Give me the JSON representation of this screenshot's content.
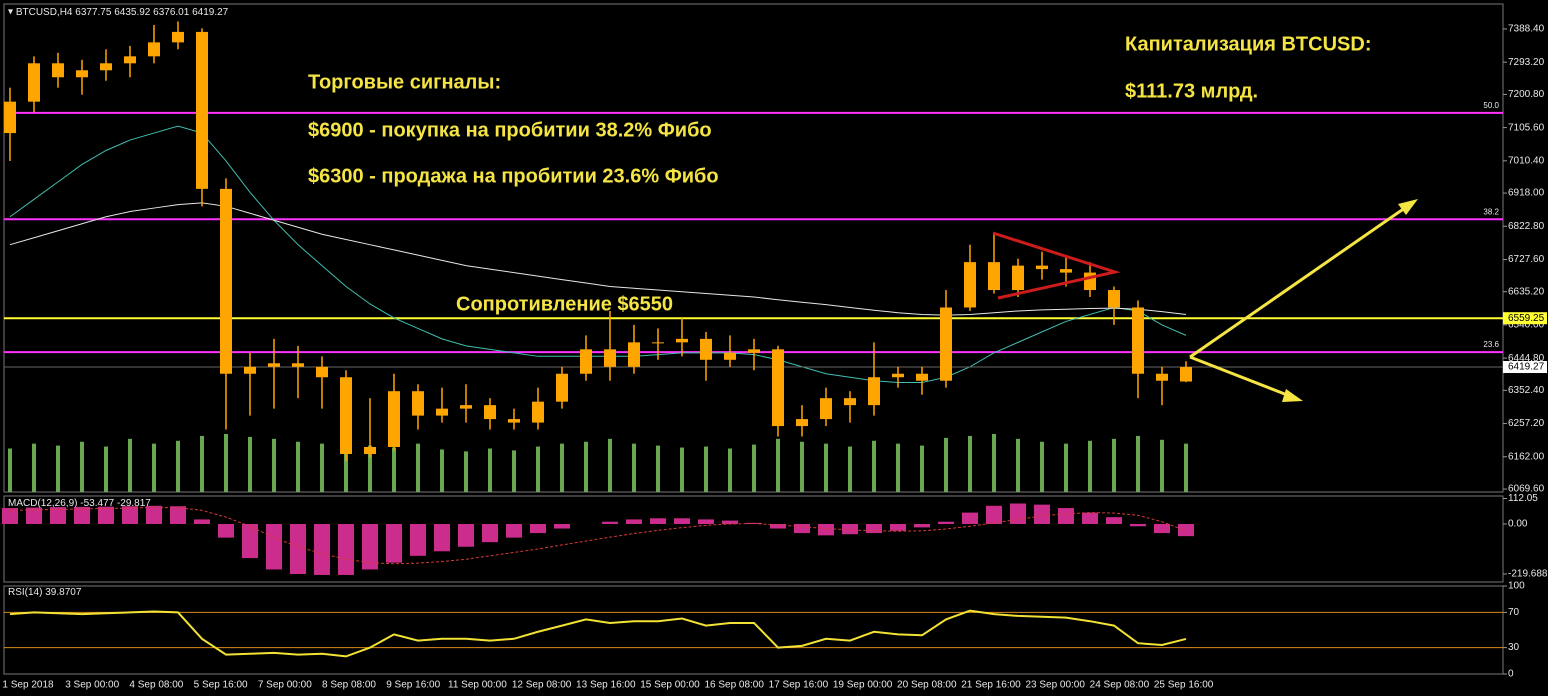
{
  "chart_data": [
    {
      "type": "candlestick",
      "title": "BTCUSD,H4",
      "color": "#ffa500",
      "volume_color": "#6aa84f",
      "ylim": [
        6061,
        7460
      ],
      "yticks": [
        {
          "value": 7388.4,
          "label": "7388.40"
        },
        {
          "value": 7293.2,
          "label": "7293.20"
        },
        {
          "value": 7200.8,
          "label": "7200.80"
        },
        {
          "value": 7105.6,
          "label": "7105.60"
        },
        {
          "value": 7010.4,
          "label": "7010.40"
        },
        {
          "value": 6918,
          "label": "6918.00"
        },
        {
          "value": 6822.8,
          "label": "6822.80"
        },
        {
          "value": 6727.6,
          "label": "6727.60"
        },
        {
          "value": 6635.2,
          "label": "6635.20"
        },
        {
          "value": 6540,
          "label": "6540.00"
        },
        {
          "value": 6444.8,
          "label": "6444.80"
        },
        {
          "value": 6352.4,
          "label": "6352.40"
        },
        {
          "value": 6257.2,
          "label": "6257.20"
        },
        {
          "value": 6162,
          "label": "6162.00"
        },
        {
          "value": 6069.6,
          "label": "6069.60"
        }
      ],
      "x_labels": [
        "1 Sep 2018",
        "3 Sep 00:00",
        "4 Sep 08:00",
        "5 Sep 16:00",
        "7 Sep 00:00",
        "8 Sep 08:00",
        "9 Sep 16:00",
        "11 Sep 00:00",
        "12 Sep 08:00",
        "13 Sep 16:00",
        "15 Sep 00:00",
        "16 Sep 08:00",
        "17 Sep 16:00",
        "19 Sep 00:00",
        "20 Sep 08:00",
        "21 Sep 16:00",
        "23 Sep 00:00",
        "24 Sep 08:00",
        "25 Sep 16:00"
      ],
      "open": [
        7090,
        7180,
        7290,
        7250,
        7270,
        7290,
        7310,
        7350,
        7380,
        6930,
        6400,
        6420,
        6430,
        6420,
        6390,
        6170,
        6190,
        6350,
        6280,
        6300,
        6310,
        6270,
        6260,
        6320,
        6400,
        6470,
        6420,
        6490,
        6490,
        6500,
        6440,
        6460,
        6470,
        6250,
        6270,
        6330,
        6310,
        6390,
        6400,
        6380,
        6590,
        6720,
        6640,
        6710,
        6700,
        6690,
        6640,
        6590,
        6400,
        6377.75
      ],
      "high": [
        7220,
        7310,
        7320,
        7300,
        7330,
        7340,
        7400,
        7410,
        7390,
        6960,
        6460,
        6500,
        6480,
        6450,
        6410,
        6330,
        6400,
        6370,
        6360,
        6370,
        6330,
        6300,
        6360,
        6420,
        6510,
        6580,
        6540,
        6530,
        6560,
        6520,
        6510,
        6500,
        6480,
        6310,
        6360,
        6350,
        6490,
        6420,
        6420,
        6640,
        6770,
        6800,
        6730,
        6750,
        6740,
        6720,
        6650,
        6610,
        6420,
        6435.92
      ],
      "low": [
        7010,
        7150,
        7220,
        7200,
        7240,
        7250,
        7290,
        7330,
        6880,
        6240,
        6280,
        6300,
        6330,
        6300,
        6150,
        6160,
        6180,
        6240,
        6260,
        6260,
        6240,
        6240,
        6240,
        6300,
        6380,
        6380,
        6400,
        6440,
        6450,
        6380,
        6420,
        6410,
        6220,
        6220,
        6250,
        6260,
        6280,
        6360,
        6340,
        6360,
        6580,
        6630,
        6620,
        6670,
        6650,
        6620,
        6540,
        6330,
        6310,
        6376.01
      ],
      "close": [
        7180,
        7290,
        7250,
        7270,
        7290,
        7310,
        7350,
        7380,
        6930,
        6400,
        6420,
        6430,
        6420,
        6390,
        6170,
        6190,
        6350,
        6280,
        6300,
        6310,
        6270,
        6260,
        6320,
        6400,
        6470,
        6420,
        6490,
        6490,
        6500,
        6440,
        6460,
        6470,
        6250,
        6270,
        6330,
        6310,
        6390,
        6400,
        6380,
        6590,
        6720,
        6640,
        6710,
        6700,
        6690,
        6640,
        6590,
        6400,
        6380,
        6419.27
      ],
      "volume": [
        45,
        50,
        48,
        52,
        47,
        55,
        50,
        53,
        58,
        60,
        57,
        55,
        52,
        50,
        56,
        48,
        46,
        50,
        44,
        42,
        45,
        43,
        47,
        50,
        52,
        55,
        50,
        48,
        46,
        47,
        45,
        49,
        55,
        52,
        50,
        47,
        53,
        50,
        48,
        56,
        58,
        60,
        55,
        52,
        50,
        53,
        55,
        58,
        54,
        50
      ],
      "series": [
        {
          "color": "#3fbfb0",
          "values": [
            6850,
            6900,
            6950,
            7000,
            7040,
            7070,
            7090,
            7110,
            7090,
            7010,
            6920,
            6840,
            6770,
            6710,
            6650,
            6600,
            6560,
            6530,
            6500,
            6480,
            6470,
            6460,
            6450,
            6450,
            6450,
            6450,
            6450,
            6455,
            6460,
            6460,
            6460,
            6455,
            6440,
            6420,
            6400,
            6390,
            6380,
            6375,
            6375,
            6390,
            6420,
            6460,
            6490,
            6520,
            6550,
            6570,
            6590,
            6580,
            6540,
            6510
          ]
        },
        {
          "color": "#e6e6e6",
          "values": [
            6770,
            6790,
            6810,
            6830,
            6850,
            6865,
            6875,
            6885,
            6890,
            6880,
            6860,
            6840,
            6820,
            6800,
            6785,
            6770,
            6755,
            6740,
            6725,
            6710,
            6700,
            6690,
            6680,
            6670,
            6660,
            6650,
            6645,
            6640,
            6635,
            6630,
            6625,
            6620,
            6612,
            6605,
            6598,
            6590,
            6582,
            6575,
            6570,
            6568,
            6570,
            6575,
            6580,
            6583,
            6585,
            6587,
            6588,
            6585,
            6578,
            6570
          ]
        }
      ],
      "levels": [
        {
          "value": 7148,
          "label": "50.0",
          "color": "#ff33ff"
        },
        {
          "value": 6843,
          "label": "38.2",
          "color": "#ff33ff"
        },
        {
          "value": 6462,
          "label": "23.6",
          "color": "#ff33ff"
        },
        {
          "value": 6559.25,
          "color": "#ffff33",
          "price_box": true
        }
      ],
      "annotations": [
        "Торговые сигналы:",
        "$6900 - покупка на пробитии 38.2% Фибо",
        "$6300 - продажа на пробитии 23.6% Фибо",
        "Капитализация BTCUSD:",
        "$111.73 млрд.",
        "Сопротивление $6550"
      ]
    },
    {
      "type": "macd",
      "title": "MACD(12,26,9)",
      "color": "#cc2d8c",
      "signal_color": "#d23a3a",
      "ylim": [
        -255,
        123
      ],
      "yticks": [
        112.05,
        {
          "value": 0,
          "label": "0.00"
        },
        -219.688
      ],
      "values": [
        70,
        72,
        74,
        75,
        76,
        78,
        80,
        78,
        20,
        -60,
        -150,
        -200,
        -220,
        -224,
        -224,
        -200,
        -170,
        -140,
        -120,
        -100,
        -80,
        -60,
        -40,
        -20,
        0,
        10,
        20,
        25,
        25,
        20,
        15,
        5,
        -20,
        -40,
        -50,
        -45,
        -40,
        -30,
        -15,
        10,
        50,
        80,
        90,
        85,
        70,
        50,
        30,
        -10,
        -40,
        -53.477
      ],
      "signal": [
        60,
        62,
        64,
        66,
        68,
        70,
        72,
        72,
        60,
        30,
        -10,
        -60,
        -100,
        -130,
        -155,
        -170,
        -175,
        -172,
        -165,
        -155,
        -140,
        -125,
        -110,
        -92,
        -75,
        -58,
        -42,
        -28,
        -16,
        -6,
        0,
        2,
        -4,
        -12,
        -20,
        -26,
        -30,
        -32,
        -30,
        -22,
        -10,
        5,
        20,
        35,
        45,
        50,
        48,
        38,
        10,
        -29.817
      ]
    },
    {
      "type": "rsi",
      "title": "RSI(14)",
      "color": "#f2e233",
      "level_color": "#d98a1a",
      "ylim": [
        0,
        100
      ],
      "yticks": [
        100,
        70,
        30,
        0
      ],
      "levels": [
        70,
        30
      ],
      "values": [
        68,
        70,
        69,
        68,
        69,
        70,
        71,
        70,
        40,
        22,
        23,
        24,
        22,
        23,
        20,
        30,
        45,
        38,
        40,
        40,
        38,
        40,
        48,
        55,
        62,
        58,
        60,
        60,
        63,
        55,
        58,
        58,
        30,
        32,
        40,
        38,
        48,
        45,
        44,
        62,
        72,
        68,
        66,
        65,
        64,
        60,
        55,
        35,
        33,
        39.8707
      ]
    }
  ]
}
